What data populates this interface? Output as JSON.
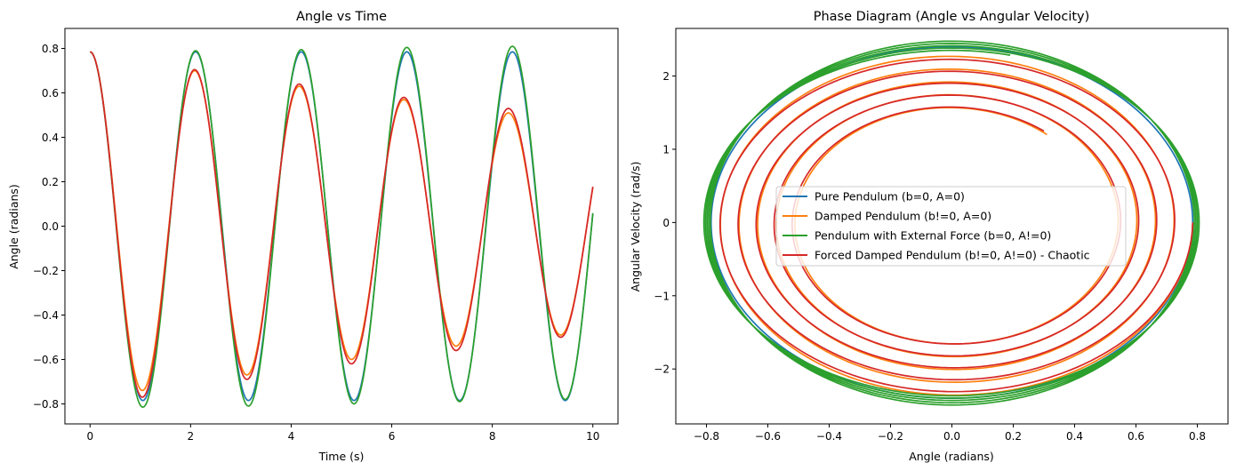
{
  "chart_data": [
    {
      "type": "line",
      "title": "Angle vs Time",
      "xlabel": "Time (s)",
      "ylabel": "Angle (radians)",
      "xlim": [
        -0.5,
        10.5
      ],
      "ylim": [
        -0.89,
        0.89
      ],
      "xticks": [
        0,
        2,
        4,
        6,
        8,
        10
      ],
      "xtick_labels": [
        "0",
        "2",
        "4",
        "6",
        "8",
        "10"
      ],
      "yticks": [
        -0.8,
        -0.6,
        -0.4,
        -0.2,
        0.0,
        0.2,
        0.4,
        0.6,
        0.8
      ],
      "ytick_labels": [
        "−0.8",
        "−0.6",
        "−0.4",
        "−0.2",
        "0.0",
        "0.2",
        "0.4",
        "0.6",
        "0.8"
      ],
      "grid": false,
      "series": [
        {
          "name": "Pure Pendulum (b=0, A=0)",
          "color": "#1f77b4",
          "theta0": 0.785,
          "amp_times": [
            0,
            1.05,
            2.1,
            3.15,
            4.2,
            5.25,
            6.3,
            7.35,
            8.4,
            9.45
          ],
          "amp_values": [
            0.785,
            -0.785,
            0.785,
            -0.785,
            0.785,
            -0.785,
            0.785,
            -0.785,
            0.785,
            -0.785
          ],
          "end": [
            10.0,
            0.24
          ]
        },
        {
          "name": "Damped Pendulum (b!=0, A=0)",
          "color": "#ff7f0e",
          "theta0": 0.785,
          "amp_times": [
            0,
            1.04,
            2.08,
            3.12,
            4.16,
            5.2,
            6.24,
            7.28,
            8.32,
            9.36
          ],
          "amp_values": [
            0.785,
            -0.74,
            0.7,
            -0.67,
            0.63,
            -0.6,
            0.57,
            -0.54,
            0.51,
            -0.49
          ],
          "end": [
            10.0,
            0.31
          ]
        },
        {
          "name": "Pendulum with External Force (b=0, A!=0)",
          "color": "#2ca02c",
          "theta0": 0.785,
          "amp_times": [
            0,
            1.05,
            2.1,
            3.15,
            4.2,
            5.25,
            6.3,
            7.35,
            8.4,
            9.45
          ],
          "amp_values": [
            0.785,
            -0.815,
            0.79,
            -0.81,
            0.795,
            -0.8,
            0.805,
            -0.79,
            0.81,
            -0.78
          ],
          "end": [
            10.0,
            0.19
          ]
        },
        {
          "name": "Forced Damped Pendulum (b!=0, A!=0) - Chaotic",
          "color": "#d62728",
          "theta0": 0.785,
          "amp_times": [
            0,
            1.04,
            2.08,
            3.12,
            4.16,
            5.2,
            6.24,
            7.28,
            8.32,
            9.36
          ],
          "amp_values": [
            0.785,
            -0.77,
            0.705,
            -0.69,
            0.64,
            -0.62,
            0.58,
            -0.56,
            0.53,
            -0.5
          ],
          "end": [
            10.0,
            0.3
          ]
        }
      ]
    },
    {
      "type": "line",
      "title": "Phase Diagram (Angle vs Angular Velocity)",
      "xlabel": "Angle (radians)",
      "ylabel": "Angular Velocity (rad/s)",
      "xlim": [
        -0.9,
        0.9
      ],
      "ylim": [
        -2.75,
        2.65
      ],
      "xticks": [
        -0.8,
        -0.6,
        -0.4,
        -0.2,
        0.0,
        0.2,
        0.4,
        0.6,
        0.8
      ],
      "xtick_labels": [
        "−0.8",
        "−0.6",
        "−0.4",
        "−0.2",
        "0.0",
        "0.2",
        "0.4",
        "0.6",
        "0.8"
      ],
      "yticks": [
        -2,
        -1,
        0,
        1,
        2
      ],
      "ytick_labels": [
        "−2",
        "−1",
        "0",
        "1",
        "2"
      ],
      "grid": false,
      "legend_position": "center",
      "series": [
        {
          "name": "Pure Pendulum (b=0, A=0)",
          "color": "#1f77b4",
          "theta_amp": [
            0.785,
            0.785
          ],
          "omega_amp": [
            2.4,
            2.4
          ],
          "start_angle": 0.785,
          "end_angle": 0.24,
          "turns": 4.8
        },
        {
          "name": "Damped Pendulum (b!=0, A=0)",
          "color": "#ff7f0e",
          "theta_amp": [
            0.785,
            0.49
          ],
          "omega_amp": [
            2.4,
            1.55
          ],
          "start_angle": 0.785,
          "end_angle": 0.31,
          "turns": 4.8
        },
        {
          "name": "Pendulum with External Force (b=0, A!=0)",
          "color": "#2ca02c",
          "theta_amp": [
            0.785,
            0.81
          ],
          "omega_amp": [
            2.5,
            2.35
          ],
          "start_angle": 0.785,
          "end_angle": 0.19,
          "turns": 4.8
        },
        {
          "name": "Forced Damped Pendulum (b!=0, A!=0) - Chaotic",
          "color": "#d62728",
          "theta_amp": [
            0.785,
            0.5
          ],
          "omega_amp": [
            2.35,
            1.56
          ],
          "start_angle": 0.785,
          "end_angle": 0.3,
          "turns": 4.8
        }
      ]
    }
  ]
}
